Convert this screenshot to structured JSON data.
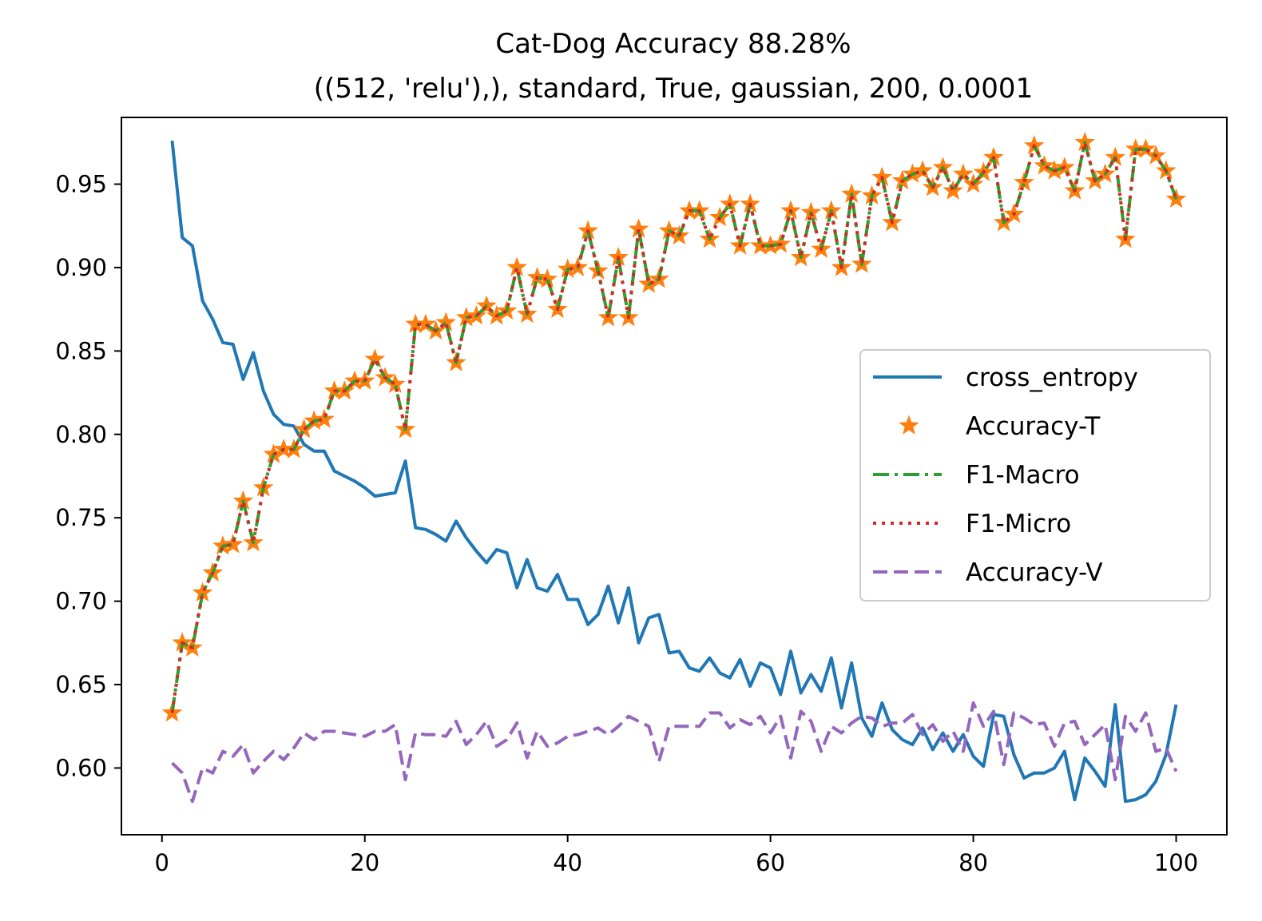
{
  "chart_data": {
    "type": "line",
    "title": "Cat-Dog Accuracy 88.28%",
    "subtitle": "((512, 'relu'),), standard, True, gaussian, 200, 0.0001",
    "xlabel": "",
    "ylabel": "",
    "xlim": [
      -4,
      105
    ],
    "ylim": [
      0.56,
      0.99
    ],
    "xticks": [
      0,
      20,
      40,
      60,
      80,
      100
    ],
    "yticks": [
      0.6,
      0.65,
      0.7,
      0.75,
      0.8,
      0.85,
      0.9,
      0.95
    ],
    "xtick_labels": [
      "0",
      "20",
      "40",
      "60",
      "80",
      "100"
    ],
    "ytick_labels": [
      "0.60",
      "0.65",
      "0.70",
      "0.75",
      "0.80",
      "0.85",
      "0.90",
      "0.95"
    ],
    "grid": false,
    "legend_position": "center-right",
    "x": [
      1,
      2,
      3,
      4,
      5,
      6,
      7,
      8,
      9,
      10,
      11,
      12,
      13,
      14,
      15,
      16,
      17,
      18,
      19,
      20,
      21,
      22,
      23,
      24,
      25,
      26,
      27,
      28,
      29,
      30,
      31,
      32,
      33,
      34,
      35,
      36,
      37,
      38,
      39,
      40,
      41,
      42,
      43,
      44,
      45,
      46,
      47,
      48,
      49,
      50,
      51,
      52,
      53,
      54,
      55,
      56,
      57,
      58,
      59,
      60,
      61,
      62,
      63,
      64,
      65,
      66,
      67,
      68,
      69,
      70,
      71,
      72,
      73,
      74,
      75,
      76,
      77,
      78,
      79,
      80,
      81,
      82,
      83,
      84,
      85,
      86,
      87,
      88,
      89,
      90,
      91,
      92,
      93,
      94,
      95,
      96,
      97,
      98,
      99,
      100
    ],
    "series": [
      {
        "name": "cross_entropy",
        "color": "#1f77b4",
        "style": "solid",
        "values": [
          0.976,
          0.918,
          0.913,
          0.88,
          0.869,
          0.855,
          0.854,
          0.833,
          0.849,
          0.826,
          0.812,
          0.806,
          0.805,
          0.794,
          0.79,
          0.79,
          0.778,
          0.775,
          0.772,
          0.768,
          0.763,
          0.764,
          0.765,
          0.784,
          0.744,
          0.743,
          0.74,
          0.736,
          0.748,
          0.738,
          0.73,
          0.723,
          0.731,
          0.729,
          0.708,
          0.725,
          0.708,
          0.706,
          0.716,
          0.701,
          0.701,
          0.686,
          0.692,
          0.709,
          0.687,
          0.708,
          0.675,
          0.69,
          0.692,
          0.669,
          0.67,
          0.66,
          0.658,
          0.666,
          0.657,
          0.654,
          0.665,
          0.649,
          0.663,
          0.66,
          0.644,
          0.67,
          0.645,
          0.656,
          0.646,
          0.666,
          0.636,
          0.663,
          0.63,
          0.619,
          0.639,
          0.623,
          0.617,
          0.614,
          0.624,
          0.611,
          0.621,
          0.61,
          0.62,
          0.607,
          0.601,
          0.632,
          0.631,
          0.608,
          0.594,
          0.597,
          0.597,
          0.6,
          0.61,
          0.581,
          0.606,
          0.598,
          0.589,
          0.638,
          0.58,
          0.581,
          0.584,
          0.592,
          0.608,
          0.638
        ]
      },
      {
        "name": "Accuracy-T",
        "color": "#ff7f0e",
        "style": "star",
        "values": [
          0.633,
          0.675,
          0.672,
          0.705,
          0.717,
          0.733,
          0.734,
          0.76,
          0.735,
          0.768,
          0.788,
          0.791,
          0.791,
          0.803,
          0.808,
          0.809,
          0.826,
          0.826,
          0.832,
          0.832,
          0.845,
          0.834,
          0.83,
          0.803,
          0.866,
          0.866,
          0.862,
          0.867,
          0.843,
          0.87,
          0.871,
          0.877,
          0.871,
          0.874,
          0.9,
          0.872,
          0.894,
          0.893,
          0.875,
          0.899,
          0.9,
          0.922,
          0.898,
          0.87,
          0.906,
          0.87,
          0.923,
          0.89,
          0.893,
          0.922,
          0.919,
          0.934,
          0.934,
          0.917,
          0.93,
          0.938,
          0.913,
          0.938,
          0.913,
          0.913,
          0.914,
          0.934,
          0.906,
          0.933,
          0.911,
          0.934,
          0.9,
          0.944,
          0.902,
          0.943,
          0.954,
          0.927,
          0.952,
          0.956,
          0.958,
          0.948,
          0.96,
          0.946,
          0.956,
          0.95,
          0.957,
          0.966,
          0.927,
          0.932,
          0.951,
          0.973,
          0.961,
          0.958,
          0.96,
          0.946,
          0.975,
          0.952,
          0.956,
          0.966,
          0.917,
          0.971,
          0.971,
          0.967,
          0.958,
          0.941
        ]
      },
      {
        "name": "F1-Macro",
        "color": "#2ca02c",
        "style": "dashdot",
        "values": [
          0.633,
          0.675,
          0.672,
          0.705,
          0.717,
          0.733,
          0.734,
          0.76,
          0.735,
          0.768,
          0.788,
          0.791,
          0.791,
          0.803,
          0.808,
          0.809,
          0.826,
          0.826,
          0.832,
          0.832,
          0.845,
          0.834,
          0.83,
          0.803,
          0.866,
          0.866,
          0.862,
          0.867,
          0.843,
          0.87,
          0.871,
          0.877,
          0.871,
          0.874,
          0.9,
          0.872,
          0.894,
          0.893,
          0.875,
          0.899,
          0.9,
          0.922,
          0.898,
          0.87,
          0.906,
          0.87,
          0.923,
          0.89,
          0.893,
          0.922,
          0.919,
          0.934,
          0.934,
          0.917,
          0.93,
          0.938,
          0.913,
          0.938,
          0.913,
          0.913,
          0.914,
          0.934,
          0.906,
          0.933,
          0.911,
          0.934,
          0.9,
          0.944,
          0.902,
          0.943,
          0.954,
          0.927,
          0.952,
          0.956,
          0.958,
          0.948,
          0.96,
          0.946,
          0.956,
          0.95,
          0.957,
          0.966,
          0.927,
          0.932,
          0.951,
          0.973,
          0.961,
          0.958,
          0.96,
          0.946,
          0.975,
          0.952,
          0.956,
          0.966,
          0.917,
          0.971,
          0.971,
          0.967,
          0.958,
          0.941
        ]
      },
      {
        "name": "F1-Micro",
        "color": "#d62728",
        "style": "dotted",
        "values": [
          0.633,
          0.675,
          0.672,
          0.705,
          0.717,
          0.733,
          0.734,
          0.76,
          0.735,
          0.768,
          0.788,
          0.791,
          0.791,
          0.803,
          0.808,
          0.809,
          0.826,
          0.826,
          0.832,
          0.832,
          0.845,
          0.834,
          0.83,
          0.803,
          0.866,
          0.866,
          0.862,
          0.867,
          0.843,
          0.87,
          0.871,
          0.877,
          0.871,
          0.874,
          0.9,
          0.872,
          0.894,
          0.893,
          0.875,
          0.899,
          0.9,
          0.922,
          0.898,
          0.87,
          0.906,
          0.87,
          0.923,
          0.89,
          0.893,
          0.922,
          0.919,
          0.934,
          0.934,
          0.917,
          0.93,
          0.938,
          0.913,
          0.938,
          0.913,
          0.913,
          0.914,
          0.934,
          0.906,
          0.933,
          0.911,
          0.934,
          0.9,
          0.944,
          0.902,
          0.943,
          0.954,
          0.927,
          0.952,
          0.956,
          0.958,
          0.948,
          0.96,
          0.946,
          0.956,
          0.95,
          0.957,
          0.966,
          0.927,
          0.932,
          0.951,
          0.973,
          0.961,
          0.958,
          0.96,
          0.946,
          0.975,
          0.952,
          0.956,
          0.966,
          0.917,
          0.971,
          0.971,
          0.967,
          0.958,
          0.941
        ]
      },
      {
        "name": "Accuracy-V",
        "color": "#9467bd",
        "style": "dashed",
        "values": [
          0.603,
          0.597,
          0.58,
          0.6,
          0.597,
          0.61,
          0.607,
          0.614,
          0.597,
          0.604,
          0.61,
          0.605,
          0.612,
          0.621,
          0.617,
          0.622,
          0.622,
          0.621,
          0.62,
          0.619,
          0.622,
          0.622,
          0.626,
          0.593,
          0.621,
          0.62,
          0.62,
          0.619,
          0.628,
          0.614,
          0.62,
          0.628,
          0.613,
          0.617,
          0.627,
          0.606,
          0.622,
          0.613,
          0.615,
          0.619,
          0.62,
          0.622,
          0.624,
          0.62,
          0.625,
          0.631,
          0.628,
          0.625,
          0.604,
          0.625,
          0.625,
          0.625,
          0.625,
          0.633,
          0.633,
          0.624,
          0.629,
          0.626,
          0.631,
          0.621,
          0.631,
          0.606,
          0.634,
          0.628,
          0.61,
          0.625,
          0.621,
          0.627,
          0.631,
          0.63,
          0.625,
          0.627,
          0.627,
          0.632,
          0.62,
          0.626,
          0.616,
          0.622,
          0.61,
          0.639,
          0.625,
          0.634,
          0.602,
          0.633,
          0.63,
          0.626,
          0.627,
          0.613,
          0.627,
          0.628,
          0.614,
          0.62,
          0.626,
          0.593,
          0.631,
          0.622,
          0.633,
          0.61,
          0.612,
          0.598
        ]
      }
    ]
  }
}
